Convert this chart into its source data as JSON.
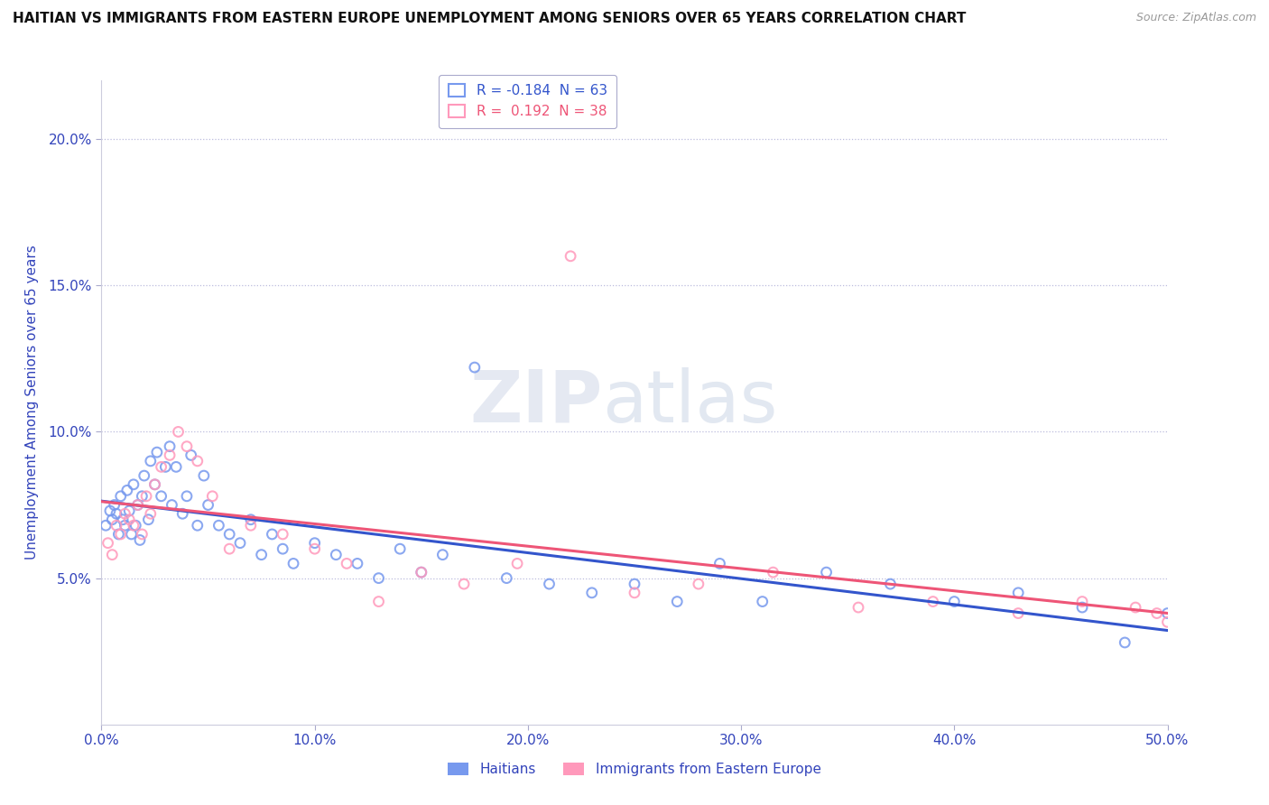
{
  "title": "HAITIAN VS IMMIGRANTS FROM EASTERN EUROPE UNEMPLOYMENT AMONG SENIORS OVER 65 YEARS CORRELATION CHART",
  "source": "Source: ZipAtlas.com",
  "ylabel": "Unemployment Among Seniors over 65 years",
  "ylabel_color": "#3344bb",
  "watermark_zip": "ZIP",
  "watermark_atlas": "atlas",
  "background_color": "#ffffff",
  "xlim": [
    0.0,
    0.5
  ],
  "ylim": [
    0.0,
    0.22
  ],
  "yticks": [
    0.05,
    0.1,
    0.15,
    0.2
  ],
  "ytick_labels": [
    "5.0%",
    "10.0%",
    "15.0%",
    "20.0%"
  ],
  "xticks": [
    0.0,
    0.1,
    0.2,
    0.3,
    0.4,
    0.5
  ],
  "xtick_labels": [
    "0.0%",
    "10.0%",
    "20.0%",
    "30.0%",
    "40.0%",
    "50.0%"
  ],
  "corr_label1": "R = -0.184  N = 63",
  "corr_label2": "R =  0.192  N = 38",
  "legend_labels": [
    "Haitians",
    "Immigrants from Eastern Europe"
  ],
  "series1_color": "#7799ee",
  "series2_color": "#ff99bb",
  "trendline1_color": "#3355cc",
  "trendline2_color": "#ee5577",
  "series1_x": [
    0.002,
    0.004,
    0.005,
    0.006,
    0.007,
    0.008,
    0.009,
    0.01,
    0.011,
    0.012,
    0.013,
    0.014,
    0.015,
    0.016,
    0.017,
    0.018,
    0.019,
    0.02,
    0.022,
    0.023,
    0.025,
    0.026,
    0.028,
    0.03,
    0.032,
    0.033,
    0.035,
    0.038,
    0.04,
    0.042,
    0.045,
    0.048,
    0.05,
    0.055,
    0.06,
    0.065,
    0.07,
    0.075,
    0.08,
    0.085,
    0.09,
    0.1,
    0.11,
    0.12,
    0.13,
    0.14,
    0.15,
    0.16,
    0.175,
    0.19,
    0.21,
    0.23,
    0.25,
    0.27,
    0.29,
    0.31,
    0.34,
    0.37,
    0.4,
    0.43,
    0.46,
    0.48,
    0.5
  ],
  "series1_y": [
    0.068,
    0.073,
    0.07,
    0.075,
    0.072,
    0.065,
    0.078,
    0.07,
    0.068,
    0.08,
    0.073,
    0.065,
    0.082,
    0.068,
    0.075,
    0.063,
    0.078,
    0.085,
    0.07,
    0.09,
    0.082,
    0.093,
    0.078,
    0.088,
    0.095,
    0.075,
    0.088,
    0.072,
    0.078,
    0.092,
    0.068,
    0.085,
    0.075,
    0.068,
    0.065,
    0.062,
    0.07,
    0.058,
    0.065,
    0.06,
    0.055,
    0.062,
    0.058,
    0.055,
    0.05,
    0.06,
    0.052,
    0.058,
    0.122,
    0.05,
    0.048,
    0.045,
    0.048,
    0.042,
    0.055,
    0.042,
    0.052,
    0.048,
    0.042,
    0.045,
    0.04,
    0.028,
    0.038
  ],
  "series2_x": [
    0.003,
    0.005,
    0.007,
    0.009,
    0.011,
    0.013,
    0.015,
    0.017,
    0.019,
    0.021,
    0.023,
    0.025,
    0.028,
    0.032,
    0.036,
    0.04,
    0.045,
    0.052,
    0.06,
    0.07,
    0.085,
    0.1,
    0.115,
    0.13,
    0.15,
    0.17,
    0.195,
    0.22,
    0.25,
    0.28,
    0.315,
    0.355,
    0.39,
    0.43,
    0.46,
    0.485,
    0.495,
    0.5
  ],
  "series2_y": [
    0.062,
    0.058,
    0.068,
    0.065,
    0.072,
    0.07,
    0.068,
    0.075,
    0.065,
    0.078,
    0.072,
    0.082,
    0.088,
    0.092,
    0.1,
    0.095,
    0.09,
    0.078,
    0.06,
    0.068,
    0.065,
    0.06,
    0.055,
    0.042,
    0.052,
    0.048,
    0.055,
    0.16,
    0.045,
    0.048,
    0.052,
    0.04,
    0.042,
    0.038,
    0.042,
    0.04,
    0.038,
    0.035
  ]
}
